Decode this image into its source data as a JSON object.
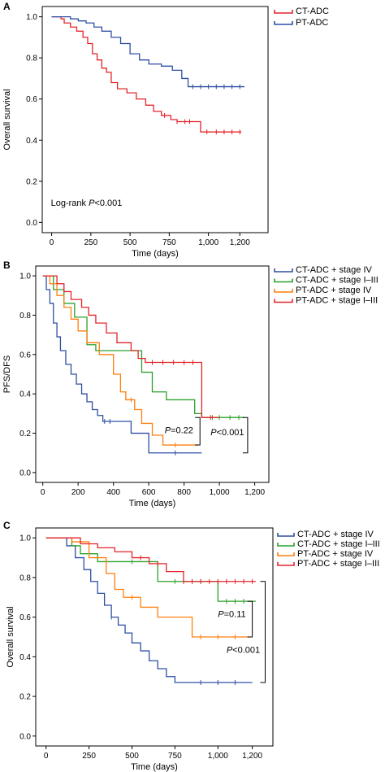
{
  "chart_data": [
    {
      "type": "line",
      "panel": "A",
      "xlabel": "Time (days)",
      "ylabel": "Overall survival",
      "xlim": [
        -60,
        1380
      ],
      "ylim": [
        -0.05,
        1.05
      ],
      "xticks": [
        0,
        250,
        500,
        750,
        "1,000",
        "1,200"
      ],
      "xtick_values": [
        0,
        250,
        500,
        750,
        1000,
        1200
      ],
      "yticks": [
        "0.0",
        "0.2",
        "0.4",
        "0.6",
        "0.8",
        "1.0"
      ],
      "ytick_values": [
        0,
        0.2,
        0.4,
        0.6,
        0.8,
        1.0
      ],
      "series": [
        {
          "name": "CT-ADC",
          "color": "#e3242b",
          "x": [
            0,
            60,
            80,
            120,
            160,
            200,
            230,
            260,
            290,
            320,
            350,
            380,
            420,
            480,
            540,
            600,
            650,
            700,
            760,
            800,
            880,
            950,
            1000,
            1210
          ],
          "y": [
            1.0,
            0.99,
            0.97,
            0.95,
            0.93,
            0.9,
            0.87,
            0.82,
            0.79,
            0.75,
            0.73,
            0.68,
            0.65,
            0.63,
            0.6,
            0.57,
            0.54,
            0.52,
            0.5,
            0.49,
            0.49,
            0.44,
            0.44,
            0.44
          ],
          "censor_x": [
            720,
            800,
            850,
            880,
            990,
            1050,
            1100,
            1150,
            1200
          ]
        },
        {
          "name": "PT-ADC",
          "color": "#2e4fa3",
          "x": [
            0,
            80,
            120,
            170,
            220,
            270,
            320,
            380,
            440,
            500,
            560,
            620,
            700,
            770,
            830,
            870,
            950,
            1230
          ],
          "y": [
            1.0,
            1.0,
            0.99,
            0.98,
            0.97,
            0.95,
            0.93,
            0.9,
            0.87,
            0.82,
            0.79,
            0.77,
            0.76,
            0.74,
            0.7,
            0.66,
            0.66,
            0.66
          ],
          "censor_x": [
            900,
            950,
            1000,
            1050,
            1100,
            1150,
            1200
          ]
        }
      ],
      "annotations": [
        {
          "text": "Log-rank ",
          "italic": "P",
          "rest": "<0.001",
          "x": -5,
          "y": 0.08
        }
      ]
    },
    {
      "type": "line",
      "panel": "B",
      "xlabel": "Time (days)",
      "ylabel": "PFS/DFS",
      "xlim": [
        -40,
        1280
      ],
      "ylim": [
        -0.05,
        1.05
      ],
      "xticks": [
        0,
        200,
        400,
        600,
        800,
        "1,000",
        "1,200"
      ],
      "xtick_values": [
        0,
        200,
        400,
        600,
        800,
        1000,
        1200
      ],
      "yticks": [
        "0.0",
        "0.2",
        "0.4",
        "0.6",
        "0.8",
        "1.0"
      ],
      "ytick_values": [
        0,
        0.2,
        0.4,
        0.6,
        0.8,
        1.0
      ],
      "series": [
        {
          "name": "CT-ADC + stage IV",
          "color": "#2e4fa3",
          "x": [
            0,
            20,
            40,
            60,
            80,
            100,
            130,
            160,
            190,
            220,
            250,
            280,
            310,
            340,
            400,
            500,
            600,
            900
          ],
          "y": [
            1.0,
            0.93,
            0.86,
            0.76,
            0.69,
            0.62,
            0.55,
            0.5,
            0.45,
            0.4,
            0.36,
            0.32,
            0.29,
            0.26,
            0.26,
            0.2,
            0.1,
            0.1
          ],
          "censor_x": [
            350,
            380,
            750
          ]
        },
        {
          "name": "CT-ADC + stage I–III",
          "color": "#2ca02c",
          "x": [
            0,
            60,
            120,
            180,
            250,
            300,
            420,
            560,
            620,
            700,
            860,
            900,
            1140
          ],
          "y": [
            1.0,
            0.93,
            0.86,
            0.79,
            0.65,
            0.62,
            0.62,
            0.51,
            0.41,
            0.37,
            0.3,
            0.28,
            0.28
          ],
          "censor_x": [
            960,
            1000,
            1060,
            1110
          ]
        },
        {
          "name": "PT-ADC + stage IV",
          "color": "#ff7f0e",
          "x": [
            0,
            40,
            80,
            120,
            160,
            200,
            250,
            320,
            400,
            440,
            470,
            520,
            560,
            620,
            680,
            880
          ],
          "y": [
            1.0,
            0.96,
            0.9,
            0.84,
            0.78,
            0.72,
            0.66,
            0.6,
            0.5,
            0.41,
            0.37,
            0.32,
            0.25,
            0.19,
            0.14,
            0.14
          ],
          "censor_x": [
            500,
            750
          ]
        },
        {
          "name": "PT-ADC + stage I–III",
          "color": "#e3242b",
          "x": [
            0,
            80,
            120,
            160,
            220,
            260,
            300,
            360,
            420,
            500,
            540,
            580,
            880,
            900,
            1000
          ],
          "y": [
            1.0,
            0.96,
            0.92,
            0.88,
            0.84,
            0.8,
            0.76,
            0.71,
            0.66,
            0.62,
            0.58,
            0.56,
            0.56,
            0.28,
            0.28
          ],
          "censor_x": [
            620,
            680,
            740,
            800,
            850,
            950
          ]
        }
      ],
      "annotations": [
        {
          "italic": "P",
          "rest": "=0.22",
          "x": 690,
          "y": 0.2
        },
        {
          "italic": "P",
          "rest": "<0.001",
          "x": 950,
          "y": 0.19
        }
      ],
      "brackets": [
        {
          "x": 890,
          "y_top": 0.28,
          "y_bottom": 0.14
        },
        {
          "x": 1160,
          "y_top": 0.28,
          "y_bottom": 0.1
        }
      ]
    },
    {
      "type": "line",
      "panel": "C",
      "xlabel": "Time (days)",
      "ylabel": "Overall survival",
      "xlim": [
        -60,
        1320
      ],
      "ylim": [
        -0.05,
        1.05
      ],
      "xticks": [
        0,
        250,
        500,
        750,
        "1,000",
        "1,200"
      ],
      "xtick_values": [
        0,
        250,
        500,
        750,
        1000,
        1200
      ],
      "yticks": [
        "0.0",
        "0.2",
        "0.4",
        "0.6",
        "0.8",
        "1.0"
      ],
      "ytick_values": [
        0,
        0.2,
        0.4,
        0.6,
        0.8,
        1.0
      ],
      "series": [
        {
          "name": "CT-ADC + stage IV",
          "color": "#2e4fa3",
          "x": [
            0,
            120,
            170,
            220,
            260,
            300,
            340,
            380,
            420,
            460,
            500,
            550,
            600,
            650,
            700,
            750,
            1200
          ],
          "y": [
            1.0,
            0.96,
            0.9,
            0.84,
            0.78,
            0.72,
            0.66,
            0.6,
            0.56,
            0.52,
            0.47,
            0.43,
            0.38,
            0.34,
            0.3,
            0.27,
            0.27
          ],
          "censor_x": [
            380,
            900,
            1000,
            1100
          ]
        },
        {
          "name": "CT-ADC + stage I–III",
          "color": "#2ca02c",
          "x": [
            0,
            150,
            200,
            300,
            350,
            450,
            600,
            650,
            960,
            1000,
            1220
          ],
          "y": [
            1.0,
            0.96,
            0.92,
            0.88,
            0.88,
            0.88,
            0.88,
            0.78,
            0.78,
            0.68,
            0.68
          ],
          "censor_x": [
            500,
            750,
            800,
            850,
            900,
            1050,
            1100,
            1150
          ]
        },
        {
          "name": "PT-ADC + stage IV",
          "color": "#ff7f0e",
          "x": [
            0,
            150,
            250,
            350,
            400,
            450,
            550,
            650,
            800,
            850,
            1190
          ],
          "y": [
            1.0,
            0.98,
            0.9,
            0.82,
            0.74,
            0.7,
            0.65,
            0.6,
            0.6,
            0.5,
            0.5
          ],
          "censor_x": [
            500,
            900,
            1000,
            1100
          ]
        },
        {
          "name": "PT-ADC + stage I–III",
          "color": "#e3242b",
          "x": [
            0,
            200,
            300,
            400,
            500,
            600,
            700,
            800,
            1220
          ],
          "y": [
            1.0,
            0.97,
            0.95,
            0.93,
            0.9,
            0.87,
            0.83,
            0.78,
            0.78
          ],
          "censor_x": [
            550,
            650,
            800,
            850,
            900,
            950,
            1000,
            1050,
            1100,
            1150,
            1200
          ]
        }
      ],
      "annotations": [
        {
          "italic": "P",
          "rest": "=0.11",
          "x": 1000,
          "y": 0.6
        },
        {
          "italic": "P",
          "rest": "<0.001",
          "x": 1050,
          "y": 0.42
        }
      ],
      "brackets": [
        {
          "x": 1200,
          "y_top": 0.68,
          "y_bottom": 0.5
        },
        {
          "x": 1275,
          "y_top": 0.78,
          "y_bottom": 0.27
        }
      ]
    }
  ]
}
